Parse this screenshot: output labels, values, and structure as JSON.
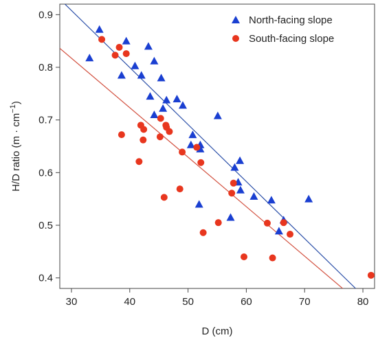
{
  "chart_data": {
    "type": "scatter",
    "title": "",
    "xlabel": "D (cm)",
    "ylabel_main": "H/D ratio (m · cm",
    "ylabel_sup": "−1",
    "ylabel_close": ")",
    "xlim": [
      28,
      82
    ],
    "ylim": [
      0.38,
      0.92
    ],
    "xticks": [
      30,
      40,
      50,
      60,
      70,
      80
    ],
    "yticks": [
      0.4,
      0.5,
      0.6,
      0.7,
      0.8,
      0.9
    ],
    "grid": false,
    "legend_position": "top-right",
    "series": [
      {
        "name": "North-facing slope",
        "marker": "triangle",
        "color": "#1a3fd1",
        "line_color": "#2b4fa8",
        "fit": {
          "slope": -0.01083,
          "intercept": 1.2328
        },
        "points": [
          [
            33.1,
            0.818
          ],
          [
            34.8,
            0.872
          ],
          [
            38.6,
            0.785
          ],
          [
            39.4,
            0.85
          ],
          [
            40.9,
            0.803
          ],
          [
            42.0,
            0.785
          ],
          [
            43.2,
            0.84
          ],
          [
            43.5,
            0.745
          ],
          [
            44.2,
            0.812
          ],
          [
            44.2,
            0.71
          ],
          [
            45.4,
            0.78
          ],
          [
            45.7,
            0.722
          ],
          [
            46.3,
            0.738
          ],
          [
            48.1,
            0.74
          ],
          [
            49.1,
            0.728
          ],
          [
            50.5,
            0.653
          ],
          [
            50.8,
            0.672
          ],
          [
            51.9,
            0.54
          ],
          [
            52.1,
            0.653
          ],
          [
            52.1,
            0.645
          ],
          [
            55.1,
            0.708
          ],
          [
            57.3,
            0.515
          ],
          [
            58.0,
            0.61
          ],
          [
            58.6,
            0.582
          ],
          [
            58.9,
            0.623
          ],
          [
            59.0,
            0.567
          ],
          [
            61.3,
            0.555
          ],
          [
            64.3,
            0.548
          ],
          [
            65.6,
            0.489
          ],
          [
            66.4,
            0.51
          ],
          [
            70.7,
            0.55
          ]
        ]
      },
      {
        "name": "South-facing slope",
        "marker": "circle",
        "color": "#e8361e",
        "line_color": "#d2503f",
        "fit": {
          "slope": -0.0094,
          "intercept": 1.0993
        },
        "points": [
          [
            35.2,
            0.853
          ],
          [
            37.5,
            0.823
          ],
          [
            38.2,
            0.838
          ],
          [
            38.6,
            0.672
          ],
          [
            39.4,
            0.826
          ],
          [
            41.6,
            0.621
          ],
          [
            41.9,
            0.69
          ],
          [
            42.3,
            0.662
          ],
          [
            42.4,
            0.682
          ],
          [
            45.2,
            0.668
          ],
          [
            45.3,
            0.703
          ],
          [
            45.9,
            0.553
          ],
          [
            46.2,
            0.69
          ],
          [
            46.3,
            0.686
          ],
          [
            46.8,
            0.678
          ],
          [
            48.6,
            0.569
          ],
          [
            49.0,
            0.639
          ],
          [
            51.5,
            0.648
          ],
          [
            52.2,
            0.619
          ],
          [
            52.6,
            0.486
          ],
          [
            55.2,
            0.505
          ],
          [
            57.5,
            0.561
          ],
          [
            57.8,
            0.58
          ],
          [
            59.6,
            0.44
          ],
          [
            63.6,
            0.504
          ],
          [
            64.5,
            0.438
          ],
          [
            66.4,
            0.505
          ],
          [
            67.5,
            0.483
          ],
          [
            81.4,
            0.405
          ]
        ]
      }
    ]
  }
}
